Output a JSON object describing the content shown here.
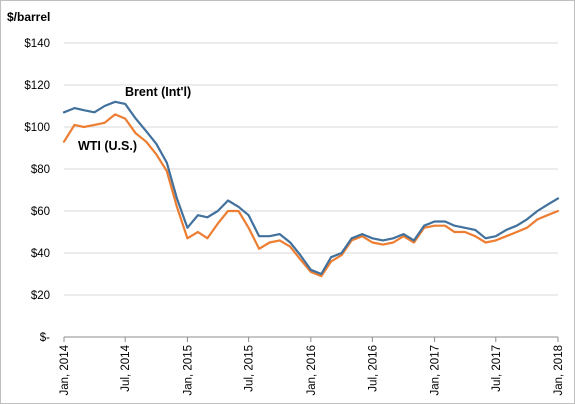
{
  "chart_data": {
    "type": "line",
    "title": "",
    "unit_label": "$/barrel",
    "xlabel": "",
    "ylabel": "",
    "ylim": [
      0,
      140
    ],
    "yticks": [
      {
        "value": 0,
        "label": "$-"
      },
      {
        "value": 20,
        "label": "$20"
      },
      {
        "value": 40,
        "label": "$40"
      },
      {
        "value": 60,
        "label": "$60"
      },
      {
        "value": 80,
        "label": "$80"
      },
      {
        "value": 100,
        "label": "$100"
      },
      {
        "value": 120,
        "label": "$120"
      },
      {
        "value": 140,
        "label": "$140"
      }
    ],
    "xlim": [
      "2014-01-01",
      "2018-01-01"
    ],
    "xticks": [
      {
        "date": "2014-01-01",
        "label": "Jan, 2014"
      },
      {
        "date": "2014-07-01",
        "label": "Jul, 2014"
      },
      {
        "date": "2015-01-01",
        "label": "Jan, 2015"
      },
      {
        "date": "2015-07-01",
        "label": "Jul, 2015"
      },
      {
        "date": "2016-01-01",
        "label": "Jan, 2016"
      },
      {
        "date": "2016-07-01",
        "label": "Jul, 2016"
      },
      {
        "date": "2017-01-01",
        "label": "Jan, 2017"
      },
      {
        "date": "2017-07-01",
        "label": "Jul, 2017"
      },
      {
        "date": "2018-01-01",
        "label": "Jan, 2018"
      }
    ],
    "grid": true,
    "legend": "inline labels",
    "series": [
      {
        "name": "Brent (Int'l)",
        "color": "#41719c",
        "x": [
          "2014-01-01",
          "2014-02-01",
          "2014-03-01",
          "2014-04-01",
          "2014-05-01",
          "2014-06-01",
          "2014-07-01",
          "2014-08-01",
          "2014-09-01",
          "2014-10-01",
          "2014-11-01",
          "2014-12-01",
          "2015-01-01",
          "2015-02-01",
          "2015-03-01",
          "2015-04-01",
          "2015-05-01",
          "2015-06-01",
          "2015-07-01",
          "2015-08-01",
          "2015-09-01",
          "2015-10-01",
          "2015-11-01",
          "2015-12-01",
          "2016-01-01",
          "2016-02-01",
          "2016-03-01",
          "2016-04-01",
          "2016-05-01",
          "2016-06-01",
          "2016-07-01",
          "2016-08-01",
          "2016-09-01",
          "2016-10-01",
          "2016-11-01",
          "2016-12-01",
          "2017-01-01",
          "2017-02-01",
          "2017-03-01",
          "2017-04-01",
          "2017-05-01",
          "2017-06-01",
          "2017-07-01",
          "2017-08-01",
          "2017-09-01",
          "2017-10-01",
          "2017-11-01",
          "2017-12-01",
          "2018-01-01"
        ],
        "values": [
          107,
          109,
          108,
          107,
          110,
          112,
          111,
          104,
          98,
          92,
          83,
          66,
          52,
          58,
          57,
          60,
          65,
          62,
          58,
          48,
          48,
          49,
          45,
          39,
          32,
          30,
          38,
          40,
          47,
          49,
          47,
          46,
          47,
          49,
          46,
          53,
          55,
          55,
          53,
          52,
          51,
          47,
          48,
          51,
          53,
          56,
          60,
          63,
          66
        ]
      },
      {
        "name": "WTI (U.S.)",
        "color": "#ed7d31",
        "x": [
          "2014-01-01",
          "2014-02-01",
          "2014-03-01",
          "2014-04-01",
          "2014-05-01",
          "2014-06-01",
          "2014-07-01",
          "2014-08-01",
          "2014-09-01",
          "2014-10-01",
          "2014-11-01",
          "2014-12-01",
          "2015-01-01",
          "2015-02-01",
          "2015-03-01",
          "2015-04-01",
          "2015-05-01",
          "2015-06-01",
          "2015-07-01",
          "2015-08-01",
          "2015-09-01",
          "2015-10-01",
          "2015-11-01",
          "2015-12-01",
          "2016-01-01",
          "2016-02-01",
          "2016-03-01",
          "2016-04-01",
          "2016-05-01",
          "2016-06-01",
          "2016-07-01",
          "2016-08-01",
          "2016-09-01",
          "2016-10-01",
          "2016-11-01",
          "2016-12-01",
          "2017-01-01",
          "2017-02-01",
          "2017-03-01",
          "2017-04-01",
          "2017-05-01",
          "2017-06-01",
          "2017-07-01",
          "2017-08-01",
          "2017-09-01",
          "2017-10-01",
          "2017-11-01",
          "2017-12-01",
          "2018-01-01"
        ],
        "values": [
          93,
          101,
          100,
          101,
          102,
          106,
          104,
          97,
          93,
          87,
          79,
          62,
          47,
          50,
          47,
          54,
          60,
          60,
          52,
          42,
          45,
          46,
          43,
          37,
          31,
          29,
          36,
          39,
          46,
          48,
          45,
          44,
          45,
          48,
          45,
          52,
          53,
          53,
          50,
          50,
          48,
          45,
          46,
          48,
          50,
          52,
          56,
          58,
          60
        ]
      }
    ]
  }
}
